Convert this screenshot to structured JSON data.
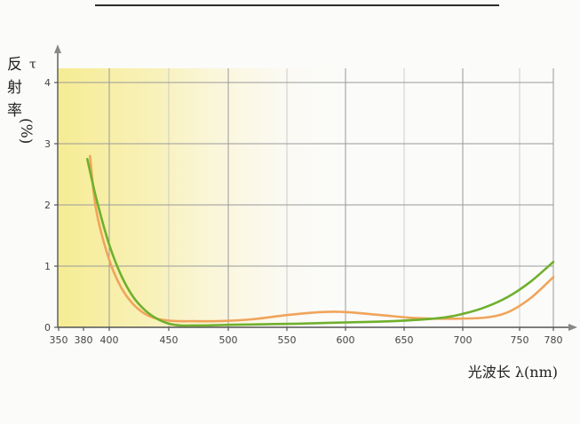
{
  "chart_data": {
    "type": "line",
    "ylabel_parts": [
      "反",
      "射",
      "率",
      "(%)"
    ],
    "y_symbol": "τ",
    "xlabel": "光波长 λ(nm)",
    "x_ticks": [
      350,
      380,
      400,
      450,
      500,
      550,
      600,
      650,
      700,
      750,
      780
    ],
    "y_ticks": [
      0,
      1,
      2,
      3,
      4
    ],
    "xlim": [
      350,
      780
    ],
    "ylim": [
      0,
      4.3
    ],
    "grid": true,
    "colors": {
      "green": "#6fb02e",
      "orange": "#f0a45a",
      "highlight": "#f7ef9c",
      "grid": "#9a9a9a",
      "axis": "#555555"
    },
    "series": [
      {
        "color": "#6fb02e",
        "x": [
          383,
          390,
          400,
          410,
          420,
          430,
          440,
          450,
          460,
          470,
          480,
          500,
          530,
          560,
          600,
          640,
          680,
          700,
          720,
          740,
          760,
          780
        ],
        "y": [
          2.75,
          2.1,
          1.35,
          0.85,
          0.5,
          0.28,
          0.14,
          0.06,
          0.03,
          0.03,
          0.03,
          0.04,
          0.05,
          0.06,
          0.08,
          0.1,
          0.15,
          0.22,
          0.33,
          0.5,
          0.75,
          1.07
        ]
      },
      {
        "color": "#f0a45a",
        "x": [
          385,
          390,
          400,
          410,
          420,
          430,
          440,
          450,
          460,
          470,
          490,
          520,
          550,
          580,
          600,
          630,
          660,
          690,
          720,
          740,
          760,
          780
        ],
        "y": [
          2.8,
          1.9,
          1.1,
          0.65,
          0.38,
          0.22,
          0.14,
          0.11,
          0.1,
          0.1,
          0.1,
          0.13,
          0.2,
          0.25,
          0.25,
          0.2,
          0.15,
          0.14,
          0.16,
          0.25,
          0.48,
          0.82
        ]
      }
    ]
  }
}
